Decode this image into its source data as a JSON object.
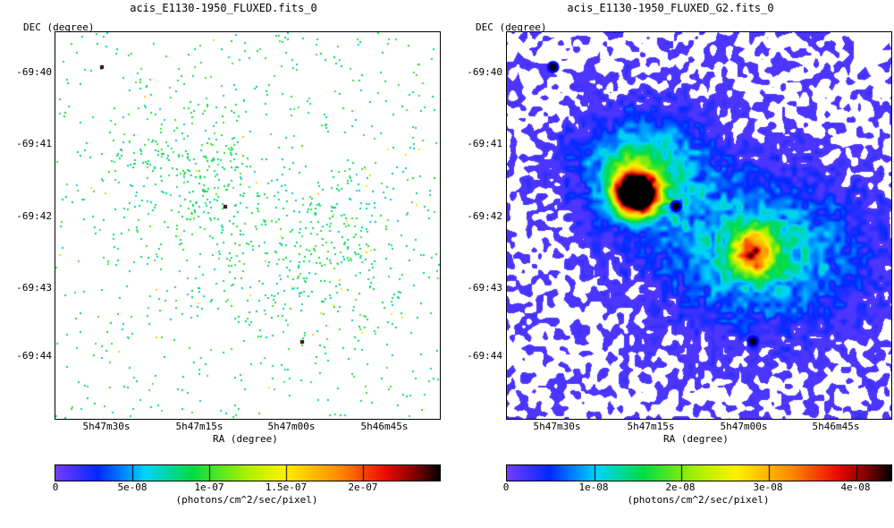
{
  "chart_data": [
    {
      "type": "heatmap",
      "title": "acis_E1130-1950_FLUXED.fits_0",
      "xlabel": "RA (degree)",
      "ylabel": "DEC (degree)",
      "x_ticks": [
        "5h47m30s",
        "5h47m15s",
        "5h47m00s",
        "5h46m45s"
      ],
      "y_ticks": [
        "-69:40",
        "-69:41",
        "-69:42",
        "-69:43",
        "-69:44"
      ],
      "colorbar": {
        "min": 0,
        "max": 2.5e-07,
        "ticks": [
          "0",
          "5e-08",
          "1e-07",
          "1.5e-07",
          "2e-07"
        ],
        "tick_values": [
          0,
          5e-08,
          1e-07,
          1.5e-07,
          2e-07
        ],
        "label": "(photons/cm^2/sec/pixel)"
      }
    },
    {
      "type": "heatmap",
      "title": "acis_E1130-1950_FLUXED_G2.fits_0",
      "xlabel": "RA (degree)",
      "ylabel": "DEC (degree)",
      "x_ticks": [
        "5h47m30s",
        "5h47m15s",
        "5h47m00s",
        "5h46m45s"
      ],
      "y_ticks": [
        "-69:40",
        "-69:41",
        "-69:42",
        "-69:43",
        "-69:44"
      ],
      "colorbar": {
        "min": 0,
        "max": 4.4e-08,
        "ticks": [
          "0",
          "1e-08",
          "2e-08",
          "3e-08",
          "4e-08"
        ],
        "tick_values": [
          0,
          1e-08,
          2e-08,
          3e-08,
          4e-08
        ],
        "label": "(photons/cm^2/sec/pixel)"
      }
    }
  ]
}
